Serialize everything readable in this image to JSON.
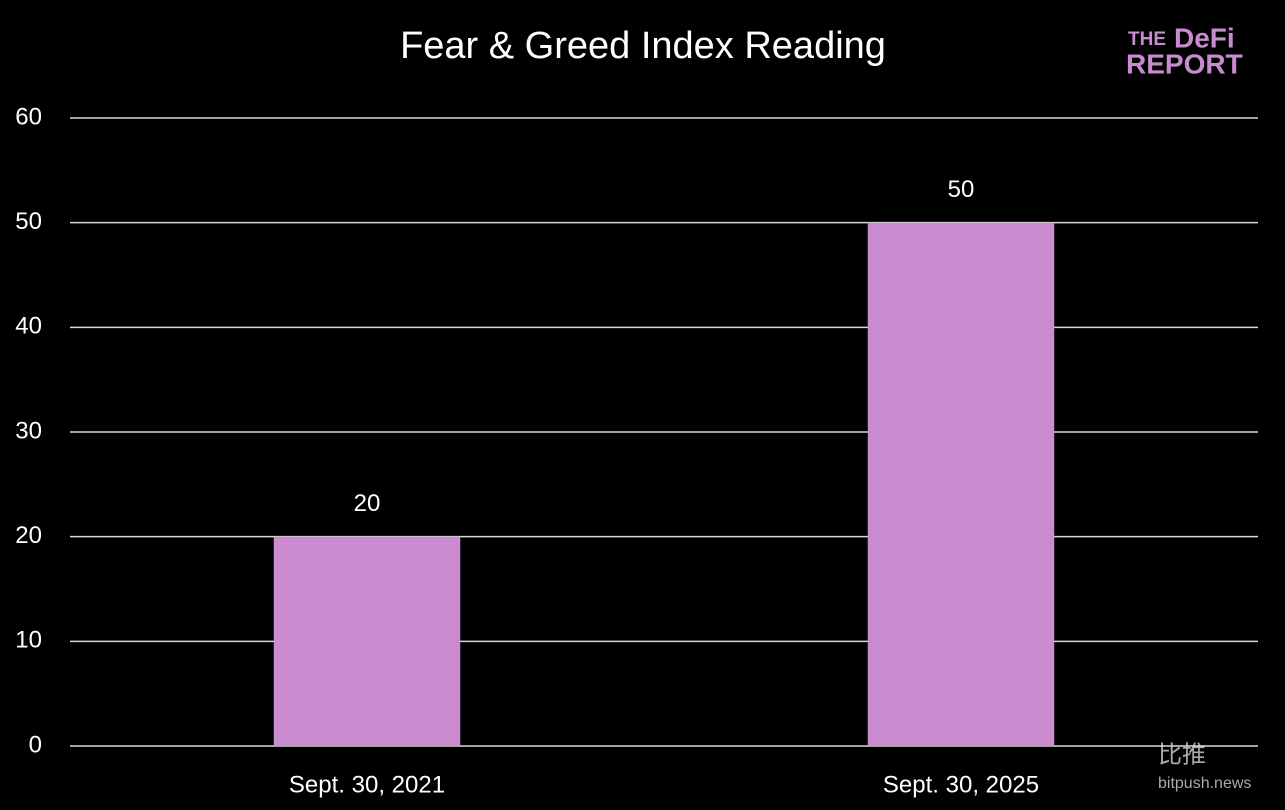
{
  "chart_data": {
    "type": "bar",
    "title": "Fear & Greed Index Reading",
    "categories": [
      "Sept. 30, 2021",
      "Sept. 30, 2025"
    ],
    "values": [
      20,
      50
    ],
    "color": "#cb8bcf",
    "ylim": [
      0,
      60
    ],
    "yticks": [
      0,
      10,
      20,
      30,
      40,
      50,
      60
    ],
    "grid": true
  },
  "logo": {
    "small": "THE",
    "large": "DeFi",
    "second": "REPORT"
  },
  "watermark": {
    "name": "比推",
    "site": "bitpush.news"
  }
}
